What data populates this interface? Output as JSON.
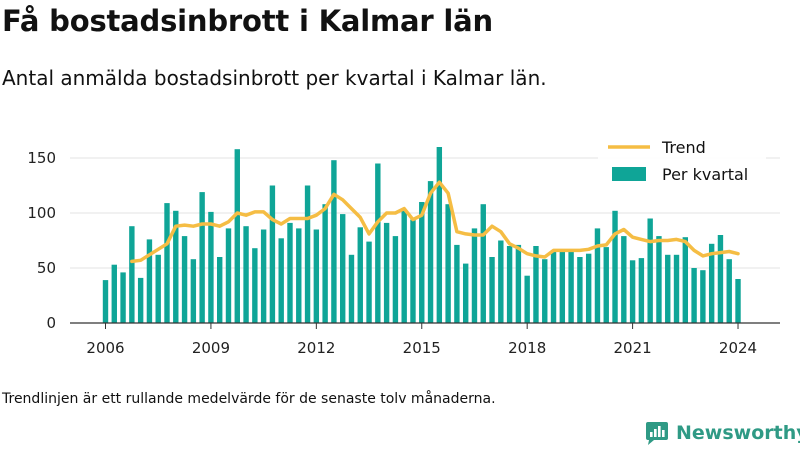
{
  "title": "Få bostadsinbrott i Kalmar län",
  "subtitle": "Antal anmälda bostadsinbrott per kvartal i Kalmar län.",
  "footnote": "Trendlinjen är ett rullande medelvärde för de senaste tolv månaderna.",
  "brand": {
    "name": "Newsworthy",
    "icon": "newsworthy-logo-icon"
  },
  "colors": {
    "bars": "#0fa597",
    "trend": "#f5bd44",
    "text": "#111111",
    "brand": "#2f9a85"
  },
  "chart_data": {
    "type": "bar",
    "title": "Få bostadsinbrott i Kalmar län",
    "subtitle": "Antal anmälda bostadsinbrott per kvartal i Kalmar län.",
    "xlabel": "",
    "ylabel": "",
    "ylim": [
      0,
      160
    ],
    "yticks": [
      0,
      50,
      100,
      150
    ],
    "xticks": [
      "2006",
      "2009",
      "2012",
      "2015",
      "2018",
      "2021",
      "2024"
    ],
    "grid": "horizontal",
    "legend_position": "top-right",
    "legend": [
      {
        "label": "Trend",
        "kind": "line",
        "color": "#f5bd44"
      },
      {
        "label": "Per kvartal",
        "kind": "bar",
        "color": "#0fa597"
      }
    ],
    "x": [
      "2006Q1",
      "2006Q2",
      "2006Q3",
      "2006Q4",
      "2007Q1",
      "2007Q2",
      "2007Q3",
      "2007Q4",
      "2008Q1",
      "2008Q2",
      "2008Q3",
      "2008Q4",
      "2009Q1",
      "2009Q2",
      "2009Q3",
      "2009Q4",
      "2010Q1",
      "2010Q2",
      "2010Q3",
      "2010Q4",
      "2011Q1",
      "2011Q2",
      "2011Q3",
      "2011Q4",
      "2012Q1",
      "2012Q2",
      "2012Q3",
      "2012Q4",
      "2013Q1",
      "2013Q2",
      "2013Q3",
      "2013Q4",
      "2014Q1",
      "2014Q2",
      "2014Q3",
      "2014Q4",
      "2015Q1",
      "2015Q2",
      "2015Q3",
      "2015Q4",
      "2016Q1",
      "2016Q2",
      "2016Q3",
      "2016Q4",
      "2017Q1",
      "2017Q2",
      "2017Q3",
      "2017Q4",
      "2018Q1",
      "2018Q2",
      "2018Q3",
      "2018Q4",
      "2019Q1",
      "2019Q2",
      "2019Q3",
      "2019Q4",
      "2020Q1",
      "2020Q2",
      "2020Q3",
      "2020Q4",
      "2021Q1",
      "2021Q2",
      "2021Q3",
      "2021Q4",
      "2022Q1",
      "2022Q2",
      "2022Q3",
      "2022Q4",
      "2023Q1",
      "2023Q2",
      "2023Q3",
      "2023Q4",
      "2024Q1"
    ],
    "series": [
      {
        "name": "Per kvartal",
        "type": "bar",
        "values": [
          39,
          53,
          46,
          88,
          41,
          76,
          62,
          109,
          102,
          79,
          58,
          119,
          101,
          60,
          86,
          158,
          88,
          68,
          85,
          125,
          77,
          91,
          86,
          125,
          85,
          108,
          148,
          99,
          62,
          87,
          74,
          145,
          91,
          79,
          102,
          94,
          110,
          129,
          160,
          108,
          71,
          54,
          86,
          108,
          60,
          75,
          70,
          71,
          43,
          70,
          58,
          66,
          65,
          67,
          60,
          63,
          86,
          69,
          102,
          79,
          57,
          59,
          95,
          79,
          62,
          62,
          78,
          50,
          48,
          72,
          80,
          58,
          40
        ]
      },
      {
        "name": "Trend",
        "type": "line",
        "values": [
          null,
          null,
          null,
          56,
          57,
          62,
          67,
          72,
          88,
          89,
          88,
          90,
          90,
          88,
          92,
          100,
          98,
          101,
          101,
          94,
          90,
          95,
          95,
          95,
          98,
          104,
          117,
          112,
          104,
          96,
          81,
          92,
          100,
          100,
          104,
          94,
          98,
          118,
          128,
          118,
          83,
          81,
          80,
          80,
          88,
          83,
          72,
          68,
          63,
          61,
          60,
          66,
          66,
          66,
          66,
          67,
          70,
          71,
          81,
          85,
          78,
          76,
          74,
          75,
          75,
          76,
          74,
          66,
          61,
          63,
          64,
          65,
          63
        ]
      }
    ]
  }
}
